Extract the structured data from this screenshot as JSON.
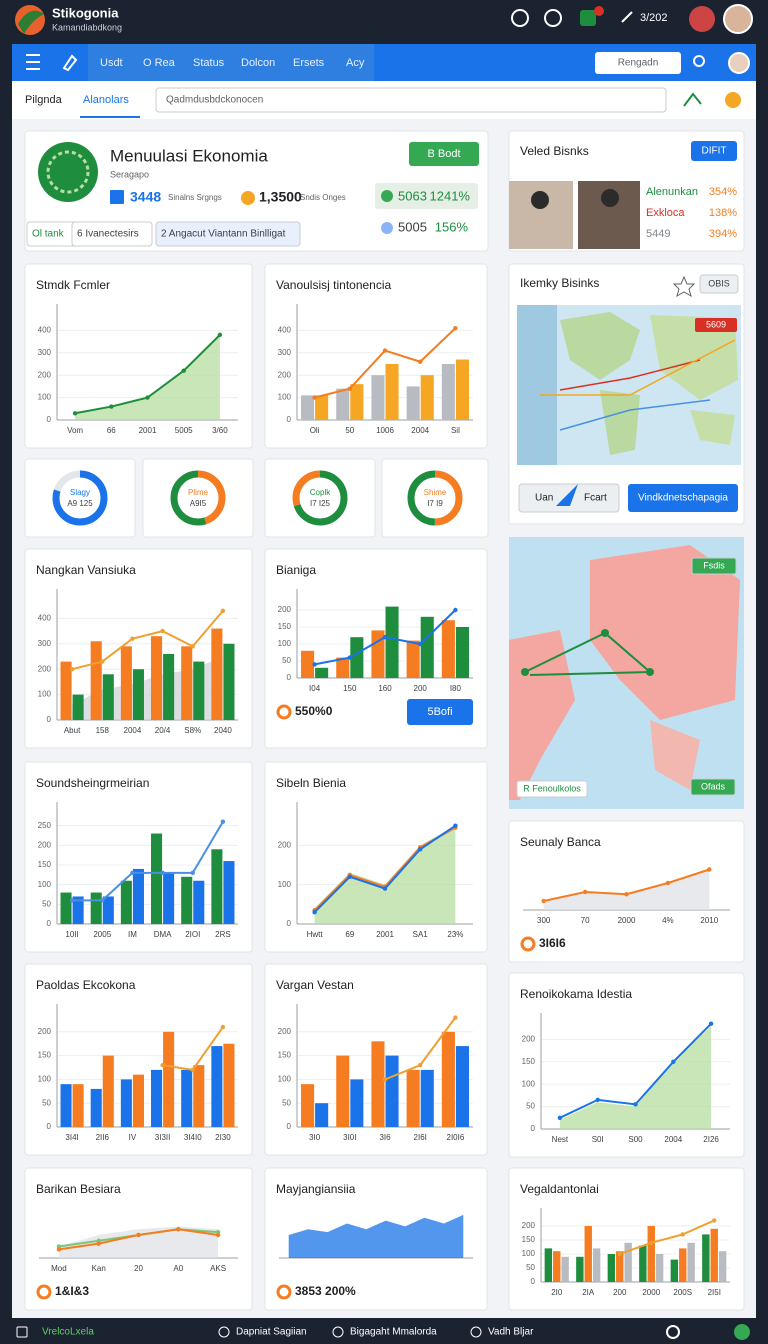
{
  "topbar": {
    "brand": "Stikogonia",
    "subtitle": "Kamandiabdkong",
    "time": "3/202"
  },
  "nav": {
    "items": [
      "Usdt",
      "O Rea",
      "Status",
      "Dolcon",
      "Ersets",
      "Acy"
    ],
    "search": "Rengadn"
  },
  "tabs": {
    "items": [
      "Pilgnda",
      "Alanolars"
    ],
    "search": "Qadmdusbdckonocen"
  },
  "hero": {
    "title": "Menuulasi Ekonomia",
    "subtitle": "Seragapo",
    "button": "B Bodt",
    "stats": [
      {
        "value": "3448",
        "label": "Sinalns Srgngs"
      },
      {
        "value": "1,3500",
        "label": "Sndis Onges"
      }
    ],
    "badges": [
      {
        "value": "5063",
        "pct": "1241%"
      },
      {
        "value": "5005",
        "pct": "156%"
      }
    ],
    "tabs": [
      "Ol tank",
      "6 Ivanectesirs",
      "2 Angacut Viantann Binlligat"
    ]
  },
  "partners": {
    "title": "Veled Bisnks",
    "button": "DIFIT",
    "rows": [
      {
        "name": "Alenunkan",
        "value": "354%"
      },
      {
        "name": "Exkloca",
        "value": "138%"
      },
      {
        "name": "5449",
        "value": "394%"
      }
    ]
  },
  "map_card": {
    "title": "Ikemky Bisinks",
    "button": "OBIS",
    "tag": "5609",
    "actions": [
      "Uan",
      "Fcart",
      "Vindkdnetschapagia"
    ]
  },
  "map_panel": {
    "tags": [
      "Fsdis",
      "R Fenoulkolos",
      "Ofads"
    ]
  },
  "donuts": [
    {
      "title": "Slagy",
      "value": "A9 125",
      "colors": [
        "#1a73e8",
        "#e3e6ea"
      ],
      "segments": [
        80,
        20
      ]
    },
    {
      "title": "Plime",
      "value": "A9I5",
      "colors": [
        "#f57c20",
        "#1e8e3e"
      ],
      "segments": [
        45,
        55
      ]
    },
    {
      "title": "Coplk",
      "value": "I7 I25",
      "colors": [
        "#1e8e3e",
        "#f57c20"
      ],
      "segments": [
        70,
        30
      ]
    },
    {
      "title": "Shime",
      "value": "I7 I9",
      "colors": [
        "#f57c20",
        "#1e8e3e"
      ],
      "segments": [
        50,
        50
      ]
    }
  ],
  "charts": [
    {
      "title": "Stmdk Fcmler",
      "grid": true,
      "categories": [
        "Vom",
        "66",
        "2001",
        "5005",
        "3/60"
      ],
      "ylim": [
        0,
        500
      ],
      "yticks": [
        0,
        100,
        200,
        300,
        400
      ],
      "series": [
        {
          "type": "area",
          "color": "#b7dea0",
          "values": [
            30,
            60,
            100,
            220,
            380
          ]
        },
        {
          "type": "line",
          "color": "#1e8e3e",
          "values": [
            30,
            60,
            100,
            220,
            380
          ]
        }
      ]
    },
    {
      "title": "Vanoulsisj tintonencia",
      "grid": true,
      "categories": [
        "Oli",
        "50",
        "1006",
        "2004",
        "Sil"
      ],
      "ylim": [
        0,
        500
      ],
      "yticks": [
        0,
        100,
        200,
        300,
        400
      ],
      "series": [
        {
          "type": "bar",
          "color": "#b8bcc2",
          "values": [
            110,
            140,
            200,
            150,
            250
          ]
        },
        {
          "type": "bar",
          "color": "#f5a623",
          "values": [
            110,
            160,
            250,
            200,
            270
          ]
        },
        {
          "type": "line",
          "color": "#f57c20",
          "values": [
            100,
            140,
            310,
            260,
            410
          ]
        }
      ]
    },
    {
      "title": "Nangkan Vansiuka",
      "grid": true,
      "categories": [
        "Abut",
        "158",
        "2004",
        "20/4",
        "S8%",
        "2040"
      ],
      "ylim": [
        0,
        500
      ],
      "yticks": [
        0,
        100,
        200,
        300,
        400
      ],
      "series": [
        {
          "type": "area",
          "color": "#cfd3d8",
          "values": [
            60,
            120,
            140,
            180,
            200,
            250
          ]
        },
        {
          "type": "bar",
          "color": "#f57c20",
          "values": [
            230,
            310,
            290,
            330,
            290,
            360
          ]
        },
        {
          "type": "bar",
          "color": "#1e8e3e",
          "values": [
            100,
            180,
            200,
            260,
            230,
            300
          ]
        },
        {
          "type": "line",
          "color": "#f0a030",
          "values": [
            200,
            230,
            320,
            350,
            290,
            430
          ]
        }
      ]
    },
    {
      "title": "Bianiga",
      "grid": true,
      "categories": [
        "I04",
        "150",
        "160",
        "200",
        "I80"
      ],
      "ylim": [
        0,
        250
      ],
      "yticks": [
        0,
        50,
        100,
        150,
        200
      ],
      "footer": "550%0",
      "button": "5Bofi",
      "series": [
        {
          "type": "bar",
          "color": "#f57c20",
          "values": [
            80,
            60,
            140,
            110,
            170
          ]
        },
        {
          "type": "bar",
          "color": "#1e8e3e",
          "values": [
            30,
            120,
            210,
            180,
            150
          ]
        },
        {
          "type": "line",
          "color": "#1a73e8",
          "values": [
            40,
            60,
            120,
            100,
            200
          ]
        }
      ]
    },
    {
      "title": "Soundsheingrmeirian",
      "grid": true,
      "categories": [
        "10II",
        "2005",
        "IM",
        "DMA",
        "2IOI",
        "2RS"
      ],
      "ylim": [
        0,
        300
      ],
      "yticks": [
        0,
        50,
        100,
        150,
        200,
        250
      ],
      "series": [
        {
          "type": "bar",
          "color": "#1e8e3e",
          "values": [
            80,
            80,
            110,
            230,
            120,
            190
          ]
        },
        {
          "type": "bar",
          "color": "#1a73e8",
          "values": [
            70,
            70,
            140,
            130,
            110,
            160
          ]
        },
        {
          "type": "line",
          "color": "#4a90e2",
          "values": [
            60,
            60,
            130,
            130,
            130,
            260
          ]
        }
      ]
    },
    {
      "title": "Sibeln Bienia",
      "grid": true,
      "categories": [
        "Hwtt",
        "69",
        "2001",
        "SA1",
        "23%"
      ],
      "ylim": [
        0,
        300
      ],
      "yticks": [
        0,
        100,
        200
      ],
      "series": [
        {
          "type": "area",
          "color": "#b7dea0",
          "values": [
            40,
            130,
            100,
            200,
            250
          ]
        },
        {
          "type": "line",
          "color": "#f57c20",
          "values": [
            35,
            125,
            95,
            195,
            245
          ]
        },
        {
          "type": "line",
          "color": "#1a73e8",
          "values": [
            30,
            120,
            90,
            190,
            250
          ]
        }
      ]
    },
    {
      "title": "Seunaly Banca",
      "grid": false,
      "categories": [
        "300",
        "70",
        "2000",
        "4%",
        "2010"
      ],
      "ylim": [
        0,
        100
      ],
      "footer": "3I6I6",
      "series": [
        {
          "type": "area",
          "color": "#dfe2e6",
          "values": [
            20,
            40,
            35,
            60,
            90
          ]
        },
        {
          "type": "line",
          "color": "#f57c20",
          "values": [
            20,
            40,
            35,
            60,
            90
          ]
        }
      ]
    },
    {
      "title": "Paoldas Ekcokona",
      "grid": true,
      "categories": [
        "3I4I",
        "2II6",
        "IV",
        "3I3II",
        "3I4I0",
        "2I30"
      ],
      "ylim": [
        0,
        250
      ],
      "yticks": [
        0,
        50,
        100,
        150,
        200
      ],
      "series": [
        {
          "type": "bar",
          "color": "#1a73e8",
          "values": [
            90,
            80,
            100,
            120,
            120,
            170
          ]
        },
        {
          "type": "bar",
          "color": "#f57c20",
          "values": [
            90,
            150,
            110,
            200,
            130,
            175
          ]
        },
        {
          "type": "line",
          "color": "#f0a030",
          "values": [
            null,
            null,
            null,
            130,
            120,
            210
          ]
        }
      ]
    },
    {
      "title": "Vargan Vestan",
      "grid": true,
      "categories": [
        "3I0",
        "3I0I",
        "3I6",
        "2I6I",
        "2I0I6"
      ],
      "ylim": [
        0,
        250
      ],
      "yticks": [
        0,
        50,
        100,
        150,
        200
      ],
      "series": [
        {
          "type": "bar",
          "color": "#f57c20",
          "values": [
            90,
            150,
            180,
            120,
            200
          ]
        },
        {
          "type": "bar",
          "color": "#1a73e8",
          "values": [
            50,
            100,
            150,
            120,
            170
          ]
        },
        {
          "type": "line",
          "color": "#f0a030",
          "values": [
            null,
            null,
            100,
            130,
            230
          ]
        }
      ]
    },
    {
      "title": "Renoikokama Idestia",
      "grid": true,
      "categories": [
        "Nest",
        "S0I",
        "S00",
        "2004",
        "2I26"
      ],
      "ylim": [
        0,
        250
      ],
      "yticks": [
        0,
        50,
        100,
        150,
        200
      ],
      "series": [
        {
          "type": "area",
          "color": "#b7dea0",
          "values": [
            20,
            60,
            50,
            150,
            230
          ]
        },
        {
          "type": "line",
          "color": "#1a73e8",
          "values": [
            25,
            65,
            55,
            150,
            235
          ]
        }
      ]
    },
    {
      "title": "Barikan Besiara",
      "grid": false,
      "categories": [
        "Mod",
        "Kan",
        "20",
        "A0",
        "AKS"
      ],
      "ylim": [
        0,
        80
      ],
      "footer": "1&I&3",
      "series": [
        {
          "type": "area",
          "color": "#dfe2e6",
          "values": [
            20,
            40,
            50,
            55,
            50
          ]
        },
        {
          "type": "line",
          "color": "#7cc576",
          "values": [
            20,
            30,
            40,
            50,
            45
          ]
        },
        {
          "type": "line",
          "color": "#f57c20",
          "values": [
            15,
            25,
            40,
            50,
            40
          ]
        }
      ]
    },
    {
      "title": "Mayjangiansiia",
      "grid": false,
      "categories": [
        null,
        null,
        null,
        null,
        null,
        null,
        null,
        null,
        null,
        null
      ],
      "ylim": [
        0,
        80
      ],
      "footer": "3853 200%",
      "series": [
        {
          "type": "area",
          "color": "#1a73e8",
          "values": [
            40,
            50,
            45,
            60,
            50,
            65,
            55,
            70,
            60,
            75
          ]
        }
      ]
    },
    {
      "title": "Vegaldantonlai",
      "grid": true,
      "categories": [
        "2I0",
        "2IA",
        "200",
        "2000",
        "200S",
        "2I5I"
      ],
      "ylim": [
        0,
        250
      ],
      "yticks": [
        0,
        50,
        100,
        150,
        200
      ],
      "series": [
        {
          "type": "bar",
          "color": "#1e8e3e",
          "values": [
            120,
            90,
            100,
            130,
            80,
            170
          ]
        },
        {
          "type": "bar",
          "color": "#f57c20",
          "values": [
            110,
            200,
            110,
            200,
            120,
            190
          ]
        },
        {
          "type": "bar",
          "color": "#b8bcc2",
          "values": [
            90,
            120,
            140,
            100,
            140,
            110
          ]
        },
        {
          "type": "line",
          "color": "#f0a030",
          "values": [
            null,
            null,
            100,
            140,
            170,
            220
          ]
        }
      ]
    }
  ],
  "footer_bar": {
    "items": [
      "VrelcoLxela",
      "Dapniat Sagiian",
      "Bigagaht Mmalorda",
      "Vadh Bljar"
    ]
  }
}
